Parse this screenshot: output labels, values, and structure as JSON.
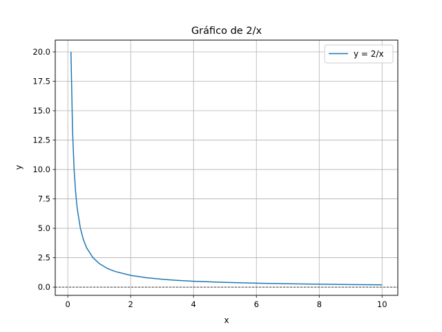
{
  "chart_data": {
    "type": "line",
    "title": "Gráfico de 2/x",
    "xlabel": "x",
    "ylabel": "y",
    "xlim": [
      -0.4,
      10.5
    ],
    "ylim": [
      -0.7,
      21.0
    ],
    "xticks": [
      0,
      2,
      4,
      6,
      8,
      10
    ],
    "xtick_labels": [
      "0",
      "2",
      "4",
      "6",
      "8",
      "10"
    ],
    "yticks": [
      0.0,
      2.5,
      5.0,
      7.5,
      10.0,
      12.5,
      15.0,
      17.5,
      20.0
    ],
    "ytick_labels": [
      "0.0",
      "2.5",
      "5.0",
      "7.5",
      "10.0",
      "12.5",
      "15.0",
      "17.5",
      "20.0"
    ],
    "grid": true,
    "legend_position": "top-right",
    "reference_line": {
      "y": 0,
      "style": "dashed",
      "color": "#000000"
    },
    "series": [
      {
        "name": "y = 2/x",
        "color": "#1f77b4",
        "x": [
          0.1,
          0.15,
          0.2,
          0.25,
          0.3,
          0.4,
          0.5,
          0.6,
          0.8,
          1.0,
          1.25,
          1.5,
          2.0,
          2.5,
          3.0,
          3.5,
          4.0,
          5.0,
          6.0,
          7.0,
          8.0,
          9.0,
          10.0
        ],
        "y": [
          20.0,
          13.333,
          10.0,
          8.0,
          6.667,
          5.0,
          4.0,
          3.333,
          2.5,
          2.0,
          1.6,
          1.333,
          1.0,
          0.8,
          0.667,
          0.571,
          0.5,
          0.4,
          0.333,
          0.286,
          0.25,
          0.222,
          0.2
        ]
      }
    ]
  }
}
